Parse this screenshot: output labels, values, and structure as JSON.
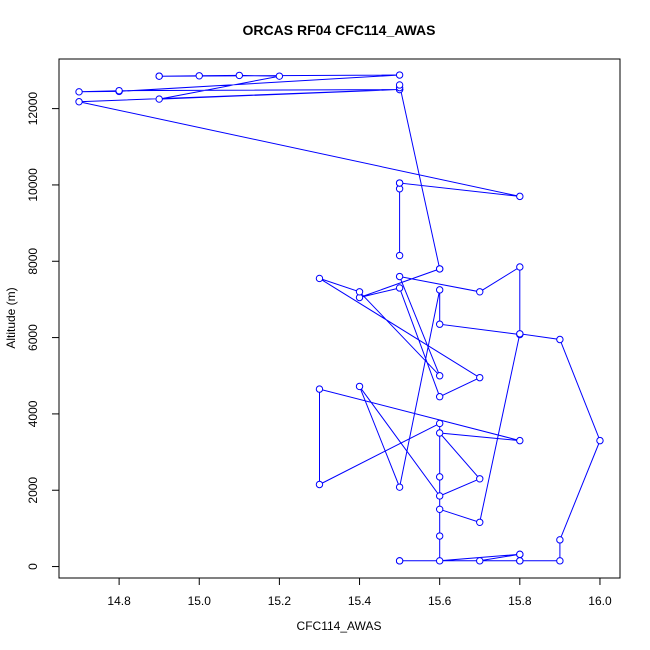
{
  "chart_data": {
    "type": "line",
    "title": "ORCAS RF04 CFC114_AWAS",
    "xlabel": "CFC114_AWAS",
    "ylabel": "Altitude (m)",
    "xlim": [
      14.65,
      16.05
    ],
    "ylim": [
      -300,
      13300
    ],
    "xticks": [
      14.8,
      15.0,
      15.2,
      15.4,
      15.6,
      15.8,
      16.0
    ],
    "xtick_labels": [
      "14.8",
      "15.0",
      "15.2",
      "15.4",
      "15.6",
      "15.8",
      "16.0"
    ],
    "yticks": [
      0,
      2000,
      4000,
      6000,
      8000,
      10000,
      12000
    ],
    "ytick_labels": [
      "0",
      "2000",
      "4000",
      "6000",
      "8000",
      "10000",
      "12000"
    ],
    "grid": false,
    "colors": {
      "series": "#0000ff",
      "axes": "#000000"
    },
    "series": [
      {
        "marker": "open-circle",
        "x": [
          15.5,
          15.5,
          15.5,
          15.5,
          15.8,
          14.7,
          15.5,
          14.9,
          15.2,
          15.1,
          15.0,
          14.9,
          14.9,
          15.5,
          14.8,
          14.7,
          14.8,
          15.5,
          15.5,
          15.5,
          15.6,
          15.6,
          15.4,
          15.5,
          15.6,
          15.7,
          15.3,
          15.4,
          15.6,
          15.5,
          15.7,
          15.8,
          15.8,
          15.6,
          15.6,
          15.5,
          15.4,
          15.6,
          15.7,
          15.6,
          15.8,
          15.3,
          15.3,
          15.6,
          15.6,
          15.7,
          15.8,
          15.9,
          16.0,
          15.9,
          15.9,
          15.8,
          15.8,
          15.7,
          15.5,
          15.5,
          15.8,
          15.8,
          15.6,
          15.6,
          15.6
        ],
        "y": [
          8150,
          9900,
          10050,
          10050,
          9700,
          12180,
          12500,
          12250,
          12850,
          12870,
          12860,
          12850,
          12850,
          12880,
          12450,
          12440,
          12470,
          12500,
          12550,
          12620,
          7800,
          7800,
          7050,
          7300,
          4450,
          4950,
          7550,
          7200,
          5000,
          7600,
          7200,
          7850,
          6080,
          6350,
          7250,
          2080,
          4720,
          1850,
          2300,
          3500,
          3300,
          4650,
          2150,
          3750,
          1500,
          1160,
          6100,
          5950,
          3300,
          700,
          150,
          150,
          320,
          150,
          150,
          150,
          150,
          320,
          150,
          800,
          2350
        ]
      }
    ]
  }
}
